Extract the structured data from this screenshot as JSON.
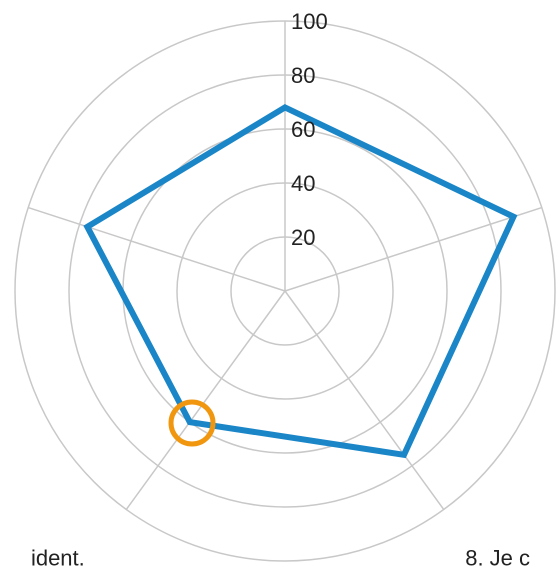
{
  "chart_data": {
    "type": "radar",
    "categories": [
      null,
      null,
      "8. Je c",
      "ident.",
      null
    ],
    "series": [
      {
        "name": null,
        "color": "#1a86c8",
        "values": [
          68,
          89,
          75,
          60,
          77
        ]
      }
    ],
    "ylim": [
      0,
      100
    ],
    "yticks": [
      20,
      40,
      60,
      80,
      100
    ],
    "grid": true
  }
}
